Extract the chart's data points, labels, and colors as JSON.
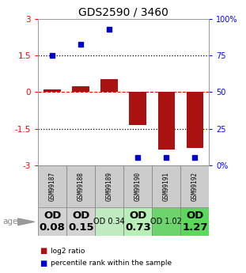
{
  "title": "GDS2590 / 3460",
  "samples": [
    "GSM99187",
    "GSM99188",
    "GSM99189",
    "GSM99190",
    "GSM99191",
    "GSM99192"
  ],
  "log2_ratio": [
    0.12,
    0.25,
    0.55,
    -1.35,
    -2.35,
    -2.28
  ],
  "percentile_rank": [
    75,
    83,
    93,
    5,
    5,
    5
  ],
  "od_labels": [
    "OD\n0.08",
    "OD\n0.15",
    "OD 0.34",
    "OD\n0.73",
    "OD 1.02",
    "OD\n1.27"
  ],
  "od_bold": [
    true,
    true,
    false,
    true,
    false,
    true
  ],
  "od_fontsize": [
    9.5,
    9.5,
    7,
    9.5,
    7,
    9.5
  ],
  "cell_colors": [
    "#d3d3d3",
    "#d3d3d3",
    "#c0eac0",
    "#b8efb8",
    "#6dd46d",
    "#5cd95c"
  ],
  "bar_color": "#aa1111",
  "dot_color": "#0000cc",
  "ylim": [
    -3,
    3
  ],
  "background_color": "#ffffff",
  "title_fontsize": 10,
  "legend_red_label": "log2 ratio",
  "legend_blue_label": "percentile rank within the sample"
}
